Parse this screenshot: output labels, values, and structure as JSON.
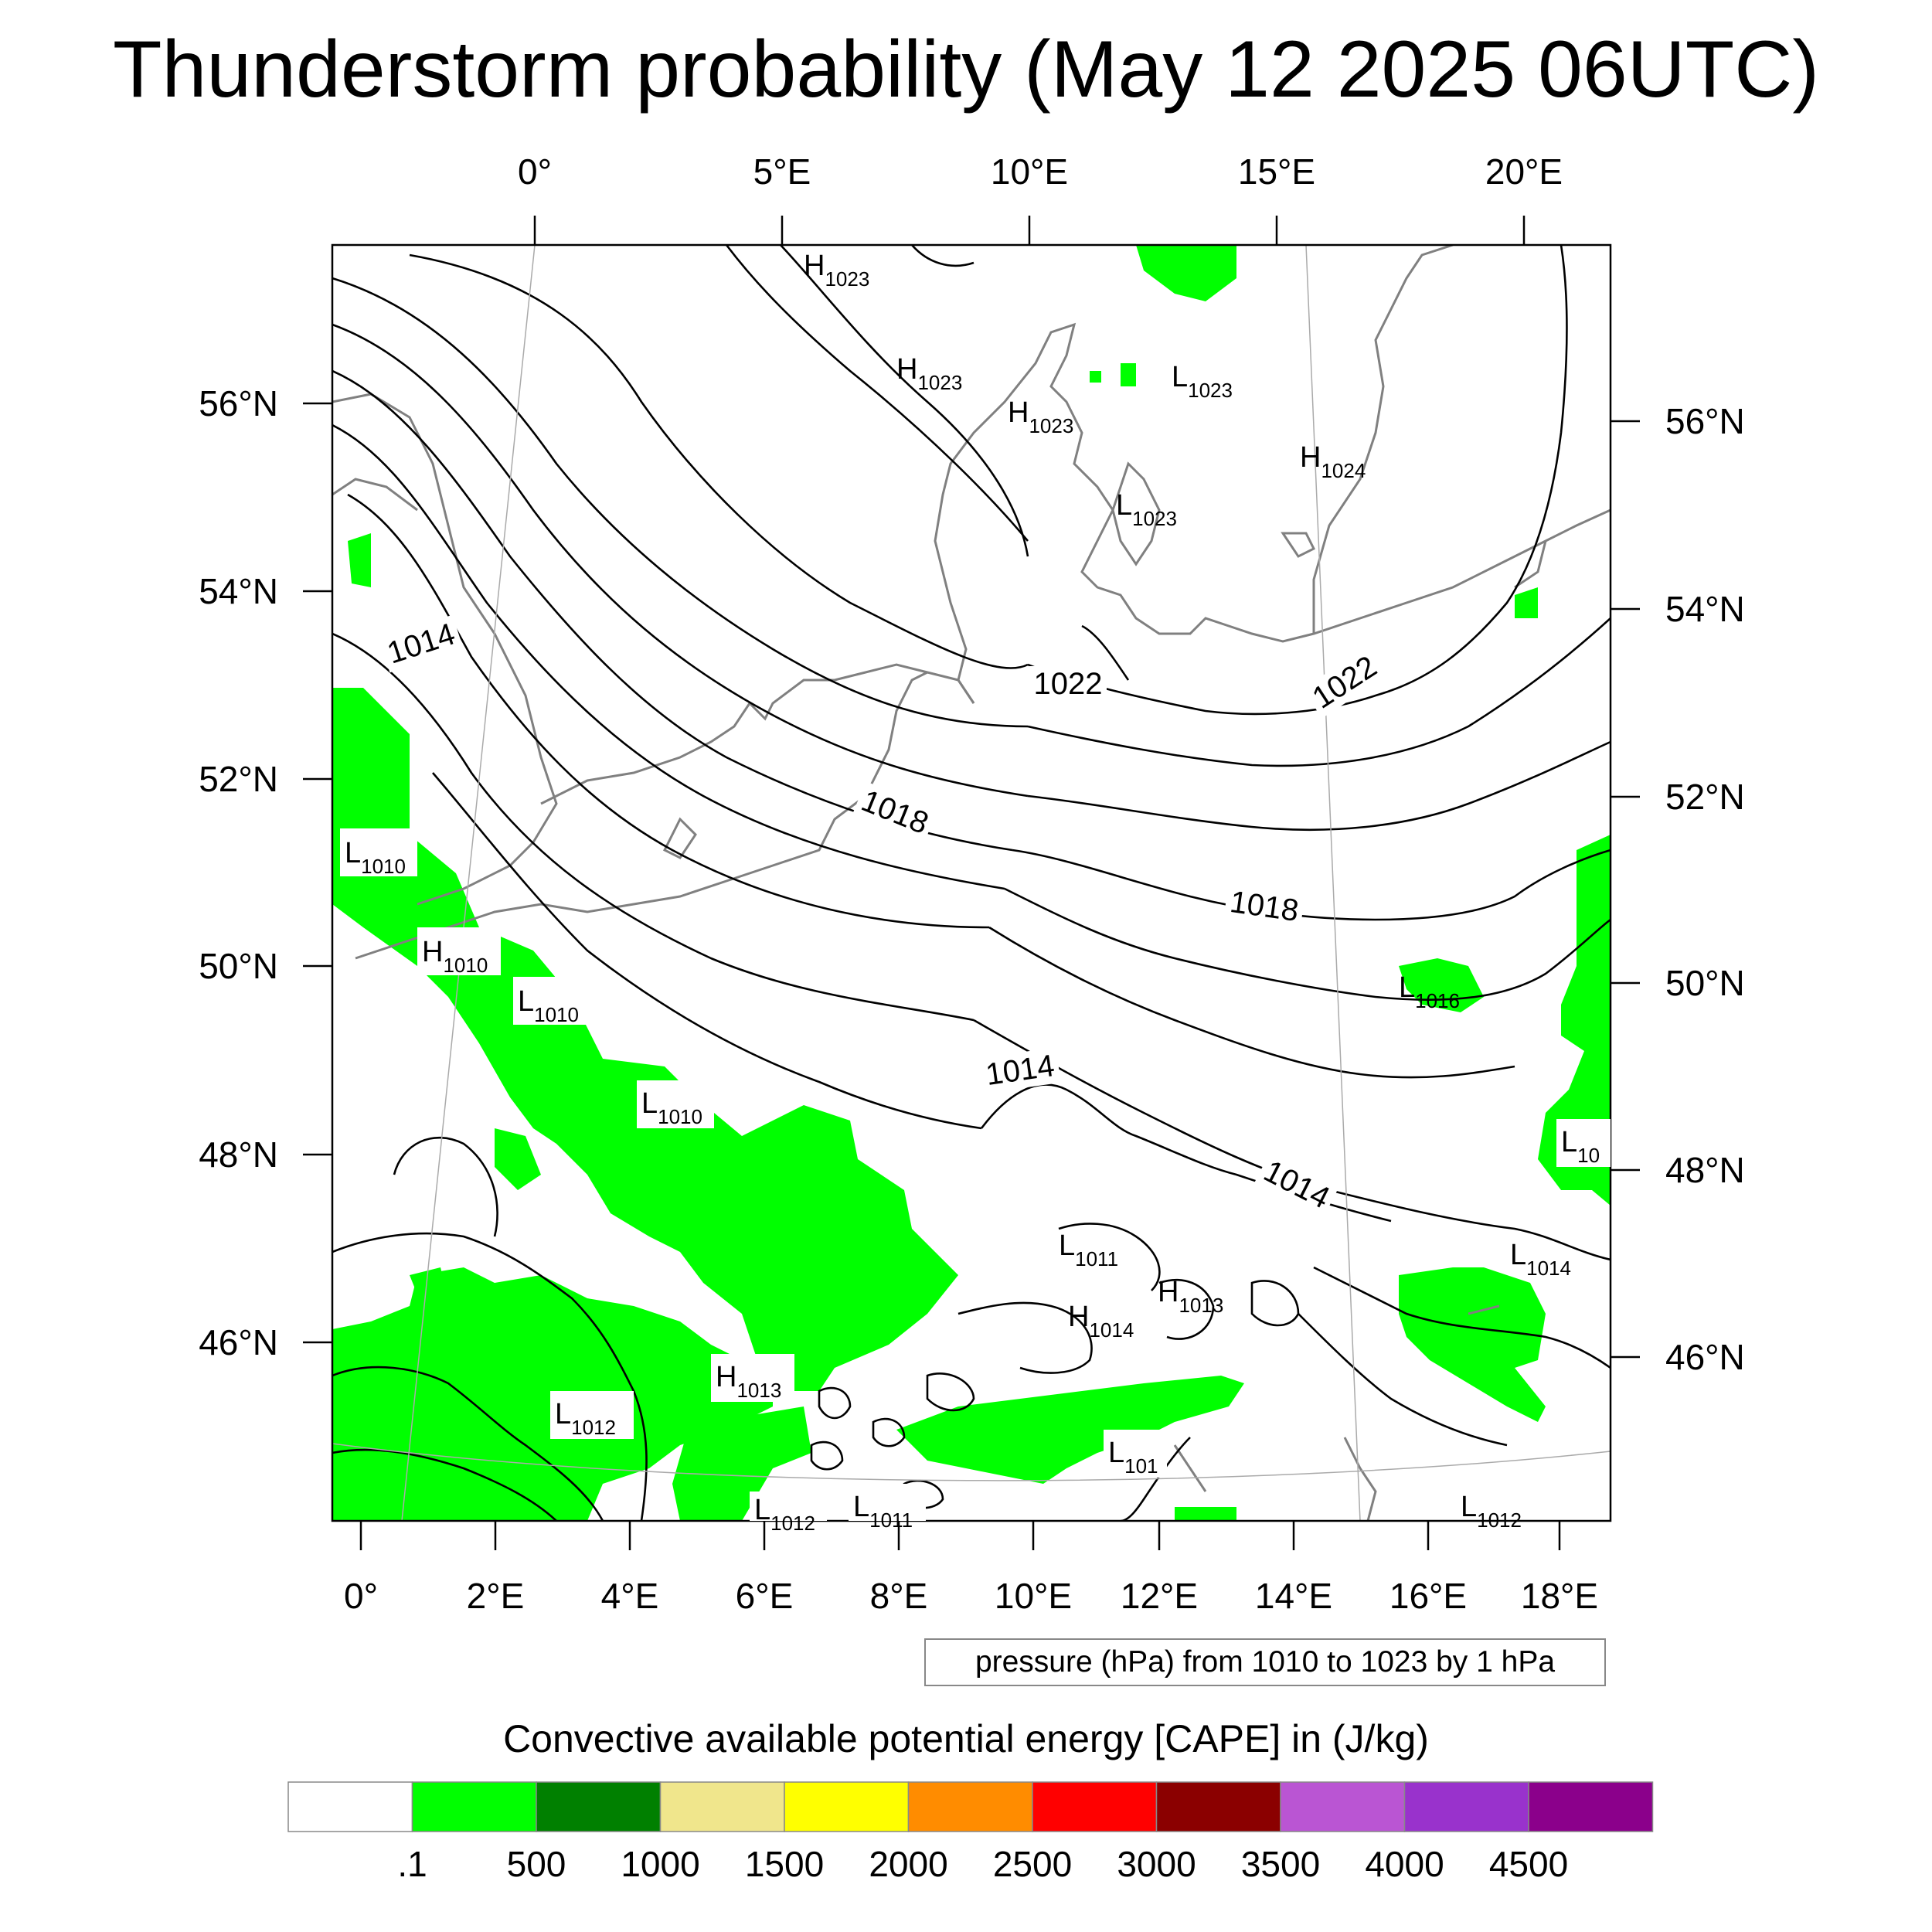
{
  "title": "Thunderstorm probability (May 12 2025 06UTC)",
  "axes": {
    "top_lon_labels": [
      "0°",
      "5°E",
      "10°E",
      "15°E",
      "20°E"
    ],
    "bottom_lon_labels": [
      "0°",
      "2°E",
      "4°E",
      "6°E",
      "8°E",
      "10°E",
      "12°E",
      "14°E",
      "16°E",
      "18°E"
    ],
    "left_lat_labels": [
      "56°N",
      "54°N",
      "52°N",
      "50°N",
      "48°N",
      "46°N"
    ],
    "right_lat_labels": [
      "56°N",
      "54°N",
      "52°N",
      "50°N",
      "48°N",
      "46°N"
    ]
  },
  "contour_info": "pressure (hPa) from 1010 to 1023 by 1 hPa",
  "isobar_labels": [
    "1014",
    "1022",
    "1022",
    "1018",
    "1018",
    "1014",
    "1014"
  ],
  "pressure_centers": [
    {
      "type": "H",
      "value": "1023"
    },
    {
      "type": "H",
      "value": "1023"
    },
    {
      "type": "H",
      "value": "1023"
    },
    {
      "type": "L",
      "value": "1023"
    },
    {
      "type": "H",
      "value": "1024"
    },
    {
      "type": "L",
      "value": "1023"
    },
    {
      "type": "L",
      "value": "1010"
    },
    {
      "type": "H",
      "value": "1010"
    },
    {
      "type": "L",
      "value": "1010"
    },
    {
      "type": "L",
      "value": "1010"
    },
    {
      "type": "L",
      "value": "1016"
    },
    {
      "type": "L",
      "value": "10"
    },
    {
      "type": "L",
      "value": "1011"
    },
    {
      "type": "H",
      "value": "1013"
    },
    {
      "type": "H",
      "value": "1014"
    },
    {
      "type": "L",
      "value": "1014"
    },
    {
      "type": "H",
      "value": "1013"
    },
    {
      "type": "L",
      "value": "1012"
    },
    {
      "type": "L",
      "value": "101"
    },
    {
      "type": "L",
      "value": "1012"
    },
    {
      "type": "L",
      "value": "1011"
    },
    {
      "type": "L",
      "value": "1012"
    }
  ],
  "colorbar": {
    "title": "Convective available potential energy [CAPE] in (J/kg)",
    "colors": [
      "#ffffff",
      "#00ff00",
      "#008000",
      "#f0e68c",
      "#ffff00",
      "#ff8c00",
      "#ff0000",
      "#8b0000",
      "#ba55d3",
      "#9932cc",
      "#8b008b"
    ],
    "labels": [
      ".1",
      "500",
      "1000",
      "1500",
      "2000",
      "2500",
      "3000",
      "3500",
      "4000",
      "4500"
    ]
  },
  "colors": {
    "cape_low": "#00ff00",
    "isobar": "#000000",
    "coastline": "#808080",
    "graticule": "#aaaaaa"
  }
}
